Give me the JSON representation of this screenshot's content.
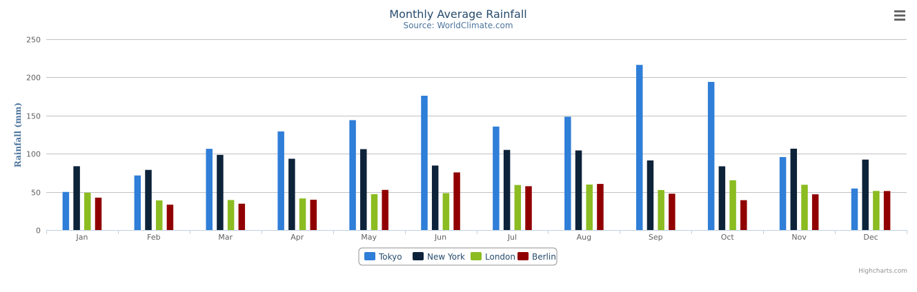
{
  "chart_data": {
    "type": "bar",
    "title": "Monthly Average Rainfall",
    "subtitle": "Source: WorldClimate.com",
    "ylabel": "Rainfall (mm)",
    "xlabel": "",
    "ylim": [
      0,
      250
    ],
    "yticks": [
      0,
      50,
      100,
      150,
      200,
      250
    ],
    "grid": true,
    "legend": "bottom-center",
    "categories": [
      "Jan",
      "Feb",
      "Mar",
      "Apr",
      "May",
      "Jun",
      "Jul",
      "Aug",
      "Sep",
      "Oct",
      "Nov",
      "Dec"
    ],
    "series": [
      {
        "name": "Tokyo",
        "color": "#2f7ed8",
        "values": [
          49.9,
          71.5,
          106.4,
          129.2,
          144.0,
          176.0,
          135.6,
          148.5,
          216.4,
          194.1,
          95.6,
          54.4
        ]
      },
      {
        "name": "New York",
        "color": "#0d233a",
        "values": [
          83.6,
          78.8,
          98.5,
          93.4,
          106.0,
          84.5,
          105.0,
          104.3,
          91.2,
          83.5,
          106.6,
          92.3
        ]
      },
      {
        "name": "London",
        "color": "#8bbc21",
        "values": [
          48.9,
          38.8,
          39.3,
          41.4,
          47.0,
          48.3,
          59.0,
          59.6,
          52.4,
          65.2,
          59.3,
          51.2
        ]
      },
      {
        "name": "Berlin",
        "color": "#910000",
        "values": [
          42.4,
          33.2,
          34.5,
          39.7,
          52.6,
          75.5,
          57.4,
          60.4,
          47.6,
          39.1,
          46.8,
          51.1
        ]
      }
    ]
  },
  "menu_icon": "hamburger-menu-icon",
  "credits": "Highcharts.com"
}
